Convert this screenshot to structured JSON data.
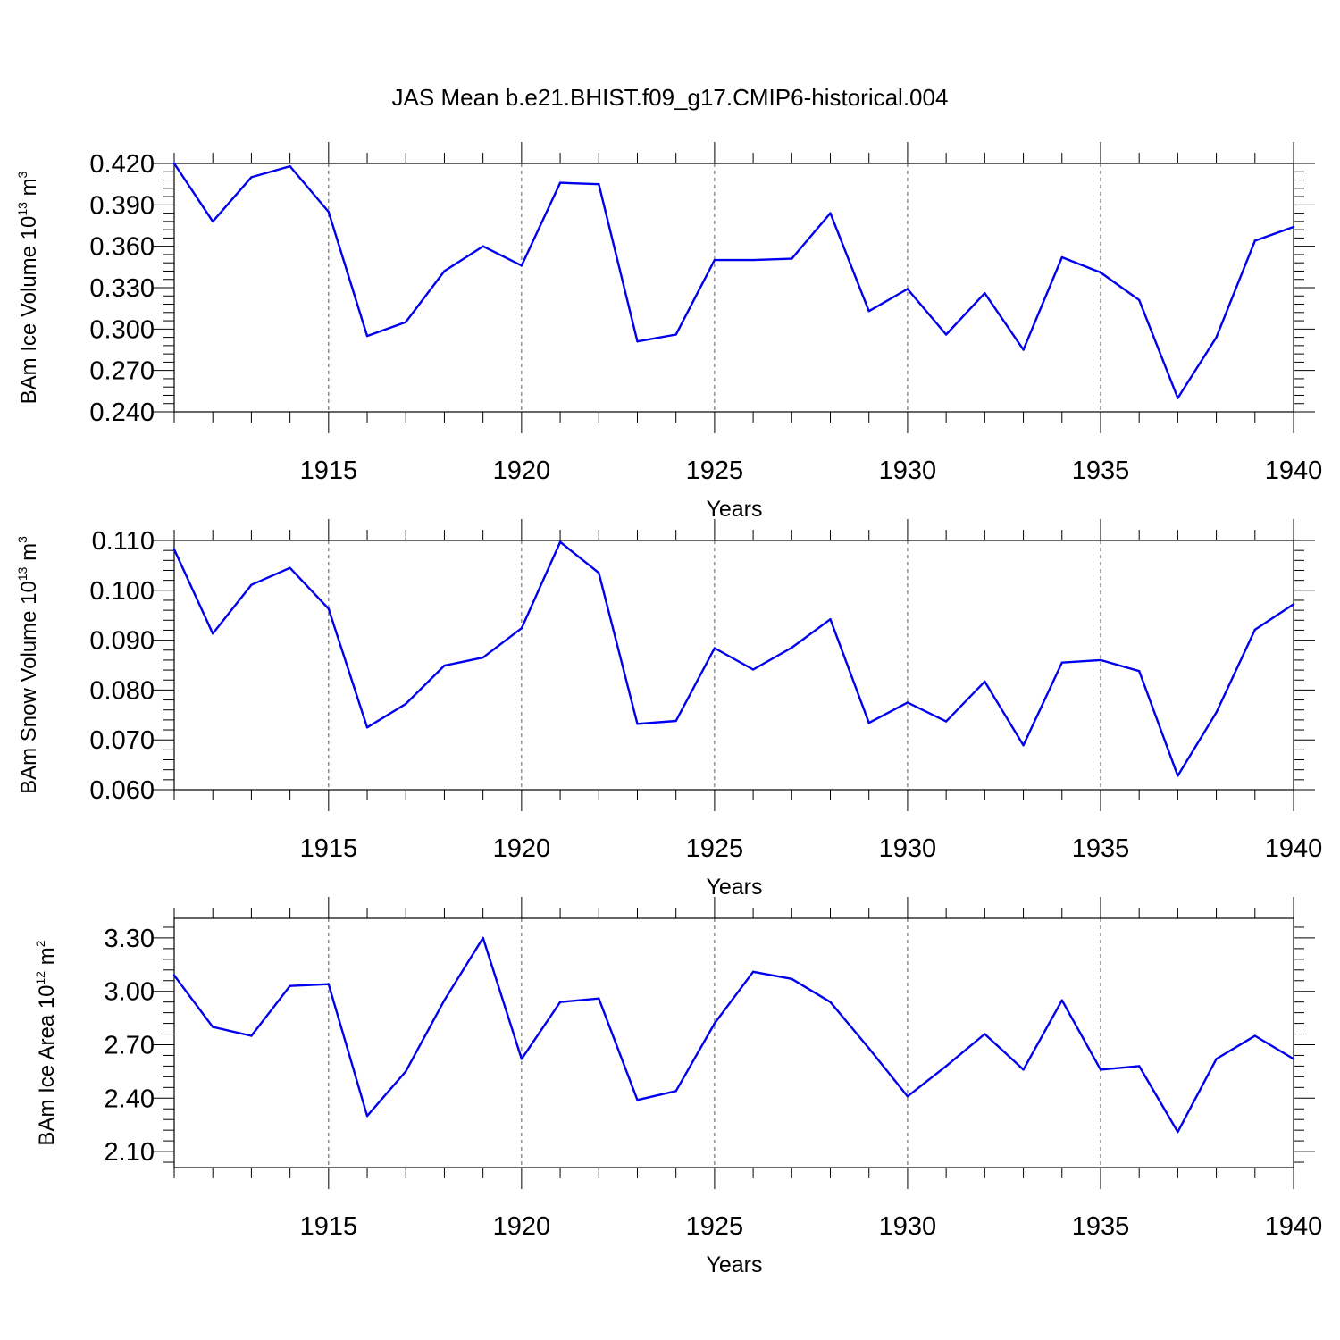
{
  "title": "JAS Mean b.e21.BHIST.f09_g17.CMIP6-historical.004",
  "colors": {
    "line": "#0000ee",
    "axis": "#000000",
    "grid": "#555555"
  },
  "chart_data": [
    {
      "type": "line",
      "ylabel": {
        "text": "BAm Ice Volume 10",
        "exponent": "13",
        "unit": "m",
        "unit_exponent": "3"
      },
      "xlabel": "Years",
      "xlim": [
        1911,
        1940
      ],
      "ylim": [
        0.24,
        0.42
      ],
      "yticks": [
        0.24,
        0.27,
        0.3,
        0.33,
        0.36,
        0.39,
        0.42
      ],
      "ytick_labels": [
        "0.240",
        "0.270",
        "0.300",
        "0.330",
        "0.360",
        "0.390",
        "0.420"
      ],
      "xticks": [
        1915,
        1920,
        1925,
        1930,
        1935,
        1940
      ],
      "xtick_labels": [
        "1915",
        "1920",
        "1925",
        "1930",
        "1935",
        "1940"
      ],
      "grid": "vertical dashed at labeled years",
      "x": [
        1911,
        1912,
        1913,
        1914,
        1915,
        1916,
        1917,
        1918,
        1919,
        1920,
        1921,
        1922,
        1923,
        1924,
        1925,
        1926,
        1927,
        1928,
        1929,
        1930,
        1931,
        1932,
        1933,
        1934,
        1935,
        1936,
        1937,
        1938,
        1939,
        1940
      ],
      "values": [
        0.42,
        0.378,
        0.41,
        0.418,
        0.385,
        0.295,
        0.305,
        0.342,
        0.36,
        0.346,
        0.406,
        0.405,
        0.291,
        0.296,
        0.35,
        0.35,
        0.351,
        0.384,
        0.313,
        0.329,
        0.296,
        0.326,
        0.285,
        0.352,
        0.341,
        0.321,
        0.25,
        0.294,
        0.364,
        0.374
      ]
    },
    {
      "type": "line",
      "ylabel": {
        "text": "BAm Snow Volume 10",
        "exponent": "13",
        "unit": "m",
        "unit_exponent": "3"
      },
      "xlabel": "Years",
      "xlim": [
        1911,
        1940
      ],
      "ylim": [
        0.06,
        0.11
      ],
      "yticks": [
        0.06,
        0.07,
        0.08,
        0.09,
        0.1,
        0.11
      ],
      "ytick_labels": [
        "0.060",
        "0.070",
        "0.080",
        "0.090",
        "0.100",
        "0.110"
      ],
      "xticks": [
        1915,
        1920,
        1925,
        1930,
        1935,
        1940
      ],
      "xtick_labels": [
        "1915",
        "1920",
        "1925",
        "1930",
        "1935",
        "1940"
      ],
      "grid": "vertical dashed at labeled years",
      "x": [
        1911,
        1912,
        1913,
        1914,
        1915,
        1916,
        1917,
        1918,
        1919,
        1920,
        1921,
        1922,
        1923,
        1924,
        1925,
        1926,
        1927,
        1928,
        1929,
        1930,
        1931,
        1932,
        1933,
        1934,
        1935,
        1936,
        1937,
        1938,
        1939,
        1940
      ],
      "values": [
        0.1082,
        0.0913,
        0.1011,
        0.1045,
        0.0963,
        0.0725,
        0.0772,
        0.0849,
        0.0865,
        0.0924,
        0.1097,
        0.1035,
        0.0732,
        0.0738,
        0.0884,
        0.0841,
        0.0885,
        0.0942,
        0.0734,
        0.0775,
        0.0737,
        0.0817,
        0.0689,
        0.0855,
        0.086,
        0.0838,
        0.0628,
        0.0755,
        0.0921,
        0.0972
      ]
    },
    {
      "type": "line",
      "ylabel": {
        "text": "BAm Ice Area 10",
        "exponent": "12",
        "unit": "m",
        "unit_exponent": "2"
      },
      "xlabel": "Years",
      "xlim": [
        1911,
        1940
      ],
      "ylim": [
        2.01,
        3.41
      ],
      "yticks": [
        2.1,
        2.4,
        2.7,
        3.0,
        3.3
      ],
      "ytick_labels": [
        "2.10",
        "2.40",
        "2.70",
        "3.00",
        "3.30"
      ],
      "xticks": [
        1915,
        1920,
        1925,
        1930,
        1935,
        1940
      ],
      "xtick_labels": [
        "1915",
        "1920",
        "1925",
        "1930",
        "1935",
        "1940"
      ],
      "grid": "vertical dashed at labeled years",
      "x": [
        1911,
        1912,
        1913,
        1914,
        1915,
        1916,
        1917,
        1918,
        1919,
        1920,
        1921,
        1922,
        1923,
        1924,
        1925,
        1926,
        1927,
        1928,
        1929,
        1930,
        1931,
        1932,
        1933,
        1934,
        1935,
        1936,
        1937,
        1938,
        1939,
        1940
      ],
      "values": [
        3.09,
        2.8,
        2.75,
        3.03,
        3.04,
        2.3,
        2.55,
        2.95,
        3.3,
        2.62,
        2.94,
        2.96,
        2.39,
        2.44,
        2.82,
        3.11,
        3.07,
        2.94,
        2.68,
        2.41,
        2.58,
        2.76,
        2.56,
        2.95,
        2.56,
        2.58,
        2.21,
        2.62,
        2.75,
        2.62
      ]
    }
  ]
}
